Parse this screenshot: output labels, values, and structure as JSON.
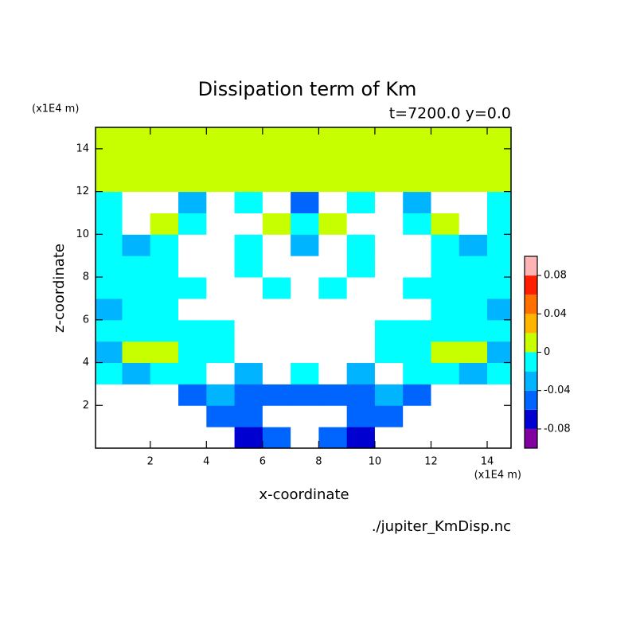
{
  "chart_data": {
    "type": "contour",
    "title": "Dissipation term of Km",
    "subtitle": "t=7200.0 y=0.0",
    "x_unit": "(x1E4 m)",
    "y_unit": "(x1E4 m)",
    "x_label": "x-coordinate",
    "y_label": "z-coordinate",
    "source": "./jupiter_KmDisp.nc",
    "xlim": [
      0.05,
      14.85
    ],
    "ylim": [
      0,
      15
    ],
    "xticks": [
      2,
      4,
      6,
      8,
      10,
      12,
      14
    ],
    "yticks": [
      2,
      4,
      6,
      8,
      10,
      12,
      14
    ],
    "x": [
      0.5,
      1.5,
      2.5,
      3.5,
      4.5,
      5.5,
      6.5,
      7.5,
      8.5,
      9.5,
      10.5,
      11.5,
      12.5,
      13.5,
      14.5
    ],
    "z": [
      0.5,
      1.5,
      2.5,
      3.5,
      4.5,
      5.5,
      6.5,
      7.5,
      8.5,
      9.5,
      10.5,
      11.5,
      12.5,
      13.5,
      14.5
    ],
    "values": [
      [
        -0.12,
        -0.12,
        -0.12,
        -0.12,
        -0.12,
        -0.07,
        -0.05,
        -0.12,
        -0.05,
        -0.07,
        -0.12,
        -0.12,
        -0.12,
        -0.12,
        -0.12
      ],
      [
        -0.12,
        -0.12,
        -0.12,
        -0.12,
        -0.05,
        -0.05,
        -0.12,
        -0.12,
        -0.12,
        -0.05,
        -0.05,
        -0.12,
        -0.12,
        -0.12,
        -0.12
      ],
      [
        -0.12,
        -0.12,
        -0.12,
        -0.05,
        -0.03,
        -0.05,
        -0.05,
        -0.05,
        -0.05,
        -0.05,
        -0.03,
        -0.05,
        -0.12,
        -0.12,
        -0.12
      ],
      [
        -0.01,
        -0.03,
        -0.01,
        -0.01,
        -0.12,
        -0.03,
        -0.12,
        -0.01,
        -0.12,
        -0.03,
        -0.12,
        -0.01,
        -0.01,
        -0.03,
        -0.01
      ],
      [
        -0.03,
        0.01,
        0.01,
        -0.01,
        -0.01,
        -0.12,
        -0.12,
        -0.12,
        -0.12,
        -0.12,
        -0.01,
        -0.01,
        0.01,
        0.01,
        -0.03
      ],
      [
        -0.01,
        -0.01,
        -0.01,
        -0.01,
        -0.01,
        -0.12,
        -0.12,
        -0.12,
        -0.12,
        -0.12,
        -0.01,
        -0.01,
        -0.01,
        -0.01,
        -0.01
      ],
      [
        -0.03,
        -0.01,
        -0.01,
        -0.12,
        -0.12,
        -0.12,
        -0.12,
        -0.12,
        -0.12,
        -0.12,
        -0.12,
        -0.12,
        -0.01,
        -0.01,
        -0.03
      ],
      [
        -0.01,
        -0.01,
        -0.01,
        -0.01,
        -0.12,
        -0.12,
        -0.01,
        -0.12,
        -0.01,
        -0.12,
        -0.12,
        -0.01,
        -0.01,
        -0.01,
        -0.01
      ],
      [
        -0.01,
        -0.01,
        -0.01,
        -0.12,
        -0.12,
        -0.01,
        -0.12,
        -0.12,
        -0.12,
        -0.01,
        -0.12,
        -0.12,
        -0.01,
        -0.01,
        -0.01
      ],
      [
        -0.01,
        -0.03,
        -0.01,
        -0.12,
        -0.12,
        -0.01,
        -0.12,
        -0.03,
        -0.12,
        -0.01,
        -0.12,
        -0.12,
        -0.01,
        -0.03,
        -0.01
      ],
      [
        -0.01,
        -0.12,
        0.01,
        -0.01,
        -0.12,
        -0.12,
        0.01,
        -0.01,
        0.01,
        -0.12,
        -0.12,
        -0.01,
        0.01,
        -0.12,
        -0.01
      ],
      [
        -0.01,
        -0.12,
        -0.12,
        -0.03,
        -0.12,
        -0.01,
        -0.12,
        -0.05,
        -0.12,
        -0.01,
        -0.12,
        -0.03,
        -0.12,
        -0.12,
        -0.01
      ],
      [
        0.01,
        0.01,
        0.01,
        0.01,
        0.01,
        0.01,
        0.01,
        0.01,
        0.01,
        0.01,
        0.01,
        0.01,
        0.01,
        0.01,
        0.01
      ],
      [
        0.01,
        0.01,
        0.01,
        0.01,
        0.01,
        0.01,
        0.01,
        0.01,
        0.01,
        0.01,
        0.01,
        0.01,
        0.01,
        0.01,
        0.01
      ],
      [
        0.01,
        0.01,
        0.01,
        0.01,
        0.01,
        0.01,
        0.01,
        0.01,
        0.01,
        0.01,
        0.01,
        0.01,
        0.01,
        0.01,
        0.01
      ]
    ],
    "colorbar": {
      "levels": [
        -0.1,
        -0.08,
        -0.06,
        -0.04,
        -0.02,
        0,
        0.02,
        0.04,
        0.06,
        0.08,
        0.1
      ],
      "colors": [
        "#8000a0",
        "#0000d0",
        "#0064ff",
        "#00b4ff",
        "#00ffff",
        "#c8ff00",
        "#ffb400",
        "#ff7000",
        "#ff1e00",
        "#ffb4b4"
      ],
      "under_color": "#ffffff",
      "ticks": [
        -0.08,
        -0.04,
        0,
        0.04,
        0.08
      ]
    }
  }
}
